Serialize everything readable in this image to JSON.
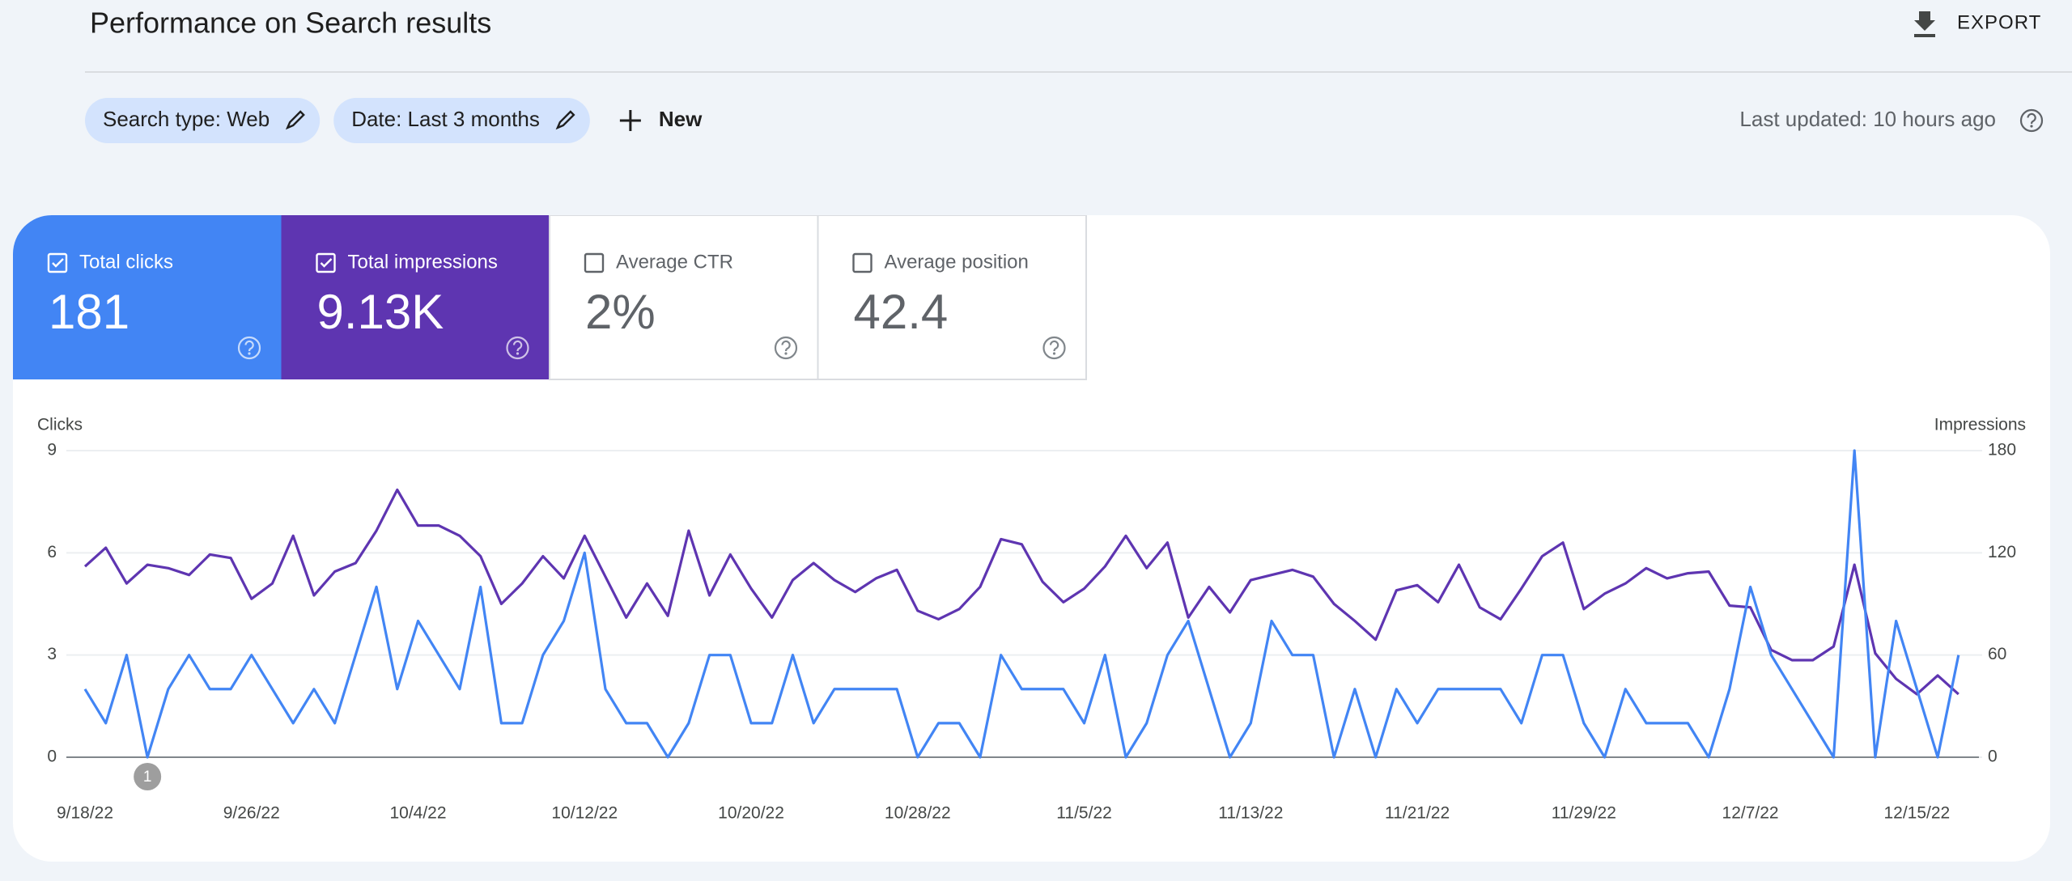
{
  "header": {
    "title": "Performance on Search results",
    "export": "EXPORT"
  },
  "filters": {
    "chips": [
      "Search type: Web",
      "Date: Last 3 months"
    ],
    "new": "New",
    "last_updated": "Last updated: 10 hours ago"
  },
  "metrics": [
    {
      "label": "Total clicks",
      "value": "181",
      "checked": true,
      "color": "#4285f4"
    },
    {
      "label": "Total impressions",
      "value": "9.13K",
      "checked": true,
      "color": "#5e35b1"
    },
    {
      "label": "Average CTR",
      "value": "2%",
      "checked": false,
      "color": "#00897b"
    },
    {
      "label": "Average position",
      "value": "42.4",
      "checked": false,
      "color": "#e8710a"
    }
  ],
  "chart_data": {
    "type": "line",
    "x": [
      "9/18/22",
      "9/19/22",
      "9/20/22",
      "9/21/22",
      "9/22/22",
      "9/23/22",
      "9/24/22",
      "9/25/22",
      "9/26/22",
      "9/27/22",
      "9/28/22",
      "9/29/22",
      "9/30/22",
      "10/1/22",
      "10/2/22",
      "10/3/22",
      "10/4/22",
      "10/5/22",
      "10/6/22",
      "10/7/22",
      "10/8/22",
      "10/9/22",
      "10/10/22",
      "10/11/22",
      "10/12/22",
      "10/13/22",
      "10/14/22",
      "10/15/22",
      "10/16/22",
      "10/17/22",
      "10/18/22",
      "10/19/22",
      "10/20/22",
      "10/21/22",
      "10/22/22",
      "10/23/22",
      "10/24/22",
      "10/25/22",
      "10/26/22",
      "10/27/22",
      "10/28/22",
      "10/29/22",
      "10/30/22",
      "10/31/22",
      "11/1/22",
      "11/2/22",
      "11/3/22",
      "11/4/22",
      "11/5/22",
      "11/6/22",
      "11/7/22",
      "11/8/22",
      "11/9/22",
      "11/10/22",
      "11/11/22",
      "11/12/22",
      "11/13/22",
      "11/14/22",
      "11/15/22",
      "11/16/22",
      "11/17/22",
      "11/18/22",
      "11/19/22",
      "11/20/22",
      "11/21/22",
      "11/22/22",
      "11/23/22",
      "11/24/22",
      "11/25/22",
      "11/26/22",
      "11/27/22",
      "11/28/22",
      "11/29/22",
      "11/30/22",
      "12/1/22",
      "12/2/22",
      "12/3/22",
      "12/4/22",
      "12/5/22",
      "12/6/22",
      "12/7/22",
      "12/8/22",
      "12/9/22",
      "12/10/22",
      "12/11/22",
      "12/12/22",
      "12/13/22",
      "12/14/22",
      "12/15/22",
      "12/16/22",
      "12/17/22"
    ],
    "xticks": [
      "9/18/22",
      "9/26/22",
      "10/4/22",
      "10/12/22",
      "10/20/22",
      "10/28/22",
      "11/5/22",
      "11/13/22",
      "11/21/22",
      "11/29/22",
      "12/7/22",
      "12/15/22"
    ],
    "ylim": [
      0,
      9
    ],
    "yticks": [
      0,
      3,
      6,
      9
    ],
    "y2lim": [
      0,
      180
    ],
    "y2ticks": [
      0,
      60,
      120,
      180
    ],
    "grid": true,
    "series": [
      {
        "name": "Clicks",
        "color": "#4285f4",
        "values": [
          2,
          1,
          3,
          0,
          2,
          3,
          2,
          2,
          3,
          2,
          1,
          2,
          1,
          3,
          5,
          2,
          4,
          3,
          2,
          5,
          1,
          1,
          3,
          4,
          6,
          2,
          1,
          1,
          0,
          1,
          3,
          3,
          1,
          1,
          3,
          1,
          2,
          2,
          2,
          2,
          0,
          1,
          1,
          0,
          3,
          2,
          2,
          2,
          1,
          3,
          0,
          1,
          3,
          4,
          2,
          0,
          1,
          4,
          3,
          3,
          0,
          2,
          0,
          2,
          1,
          2,
          2,
          2,
          2,
          1,
          3,
          3,
          1,
          0,
          2,
          1,
          1,
          1,
          0,
          2,
          5,
          3,
          2,
          1,
          0,
          9,
          0,
          4,
          2,
          0,
          3
        ]
      },
      {
        "name": "Impressions",
        "color": "#5e35b1",
        "axis": "y2",
        "values": [
          112,
          123,
          102,
          113,
          111,
          107,
          119,
          117,
          93,
          102,
          130,
          95,
          109,
          114,
          133,
          157,
          136,
          136,
          130,
          118,
          90,
          102,
          118,
          105,
          130,
          106,
          82,
          102,
          83,
          133,
          95,
          119,
          99,
          82,
          104,
          114,
          104,
          97,
          105,
          110,
          86,
          81,
          87,
          100,
          128,
          125,
          103,
          91,
          99,
          112,
          130,
          111,
          126,
          82,
          100,
          85,
          104,
          107,
          110,
          106,
          90,
          80,
          69,
          98,
          101,
          91,
          113,
          88,
          81,
          99,
          118,
          126,
          87,
          96,
          102,
          111,
          105,
          108,
          109,
          89,
          88,
          63,
          57,
          57,
          65,
          113,
          61,
          46,
          37,
          48,
          37
        ]
      }
    ],
    "annotations": [
      {
        "x": "9/21/22",
        "label": "1"
      }
    ]
  }
}
